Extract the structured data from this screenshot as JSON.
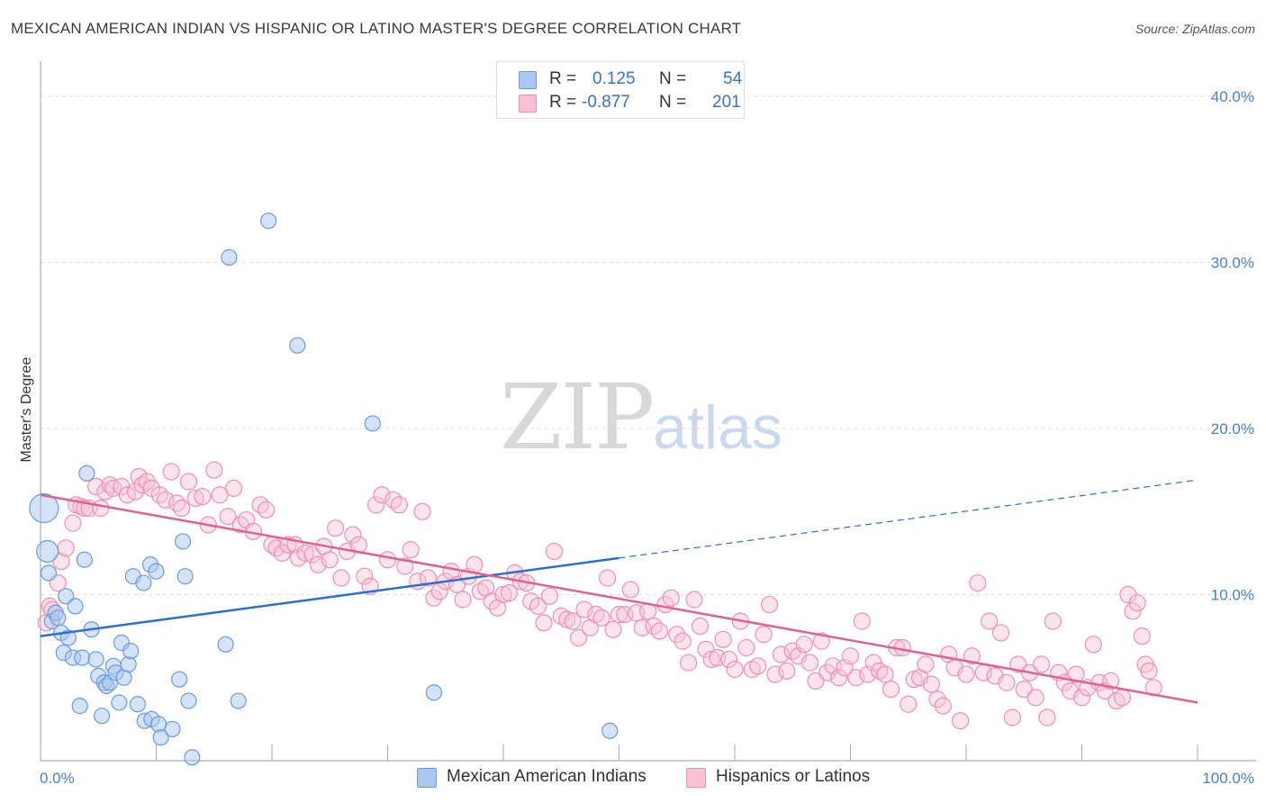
{
  "header": {
    "title": "MEXICAN AMERICAN INDIAN VS HISPANIC OR LATINO MASTER'S DEGREE CORRELATION CHART",
    "source": "Source: ZipAtlas.com"
  },
  "watermark": {
    "zip": "ZIP",
    "atlas": "atlas"
  },
  "legend": {
    "rows": [
      {
        "r_label": "R =",
        "r_value": "0.125",
        "n_label": "N =",
        "n_value": "54",
        "color": "#8fb4ea"
      },
      {
        "r_label": "R =",
        "r_value": "-0.877",
        "n_label": "N =",
        "n_value": "201",
        "color": "#f4a9c1"
      }
    ]
  },
  "bottom_legend": {
    "series1": "Mexican American Indians",
    "series2": "Hispanics or Latinos"
  },
  "colors": {
    "blue_fill": "#a9c7f0",
    "blue_stroke": "#6a9be0",
    "blue_line": "#2b6fd4",
    "pink_fill": "#f7c3d4",
    "pink_stroke": "#ee8fb0",
    "pink_line": "#e0628f",
    "grid": "#dddddd",
    "tick_text": "#4a7fd0"
  },
  "chart_data": {
    "type": "scatter",
    "title": "MEXICAN AMERICAN INDIAN VS HISPANIC OR LATINO MASTER'S DEGREE CORRELATION CHART",
    "xlabel": "",
    "ylabel": "Master's Degree",
    "xlim": [
      0,
      100
    ],
    "ylim": [
      0,
      42
    ],
    "x_tick_labels": [
      {
        "value": 0,
        "label": "0.0%"
      },
      {
        "value": 100,
        "label": "100.0%"
      }
    ],
    "y_tick_labels": [
      {
        "value": 10,
        "label": "10.0%"
      },
      {
        "value": 20,
        "label": "20.0%"
      },
      {
        "value": 30,
        "label": "30.0%"
      },
      {
        "value": 40,
        "label": "40.0%"
      }
    ],
    "series": [
      {
        "name": "Mexican American Indians",
        "r": 0.125,
        "n": 54,
        "trend": {
          "x0": 0,
          "y0": 7.5,
          "x1": 50,
          "y1": 12.2,
          "dashed_to_x": 100,
          "dashed_to_y": 16.9
        },
        "points": [
          [
            0.3,
            15.2
          ],
          [
            0.6,
            12.6
          ],
          [
            0.7,
            11.3
          ],
          [
            1.0,
            8.4
          ],
          [
            1.3,
            8.9
          ],
          [
            1.5,
            8.6
          ],
          [
            1.8,
            7.7
          ],
          [
            2.0,
            6.5
          ],
          [
            2.2,
            9.9
          ],
          [
            2.4,
            7.4
          ],
          [
            2.8,
            6.2
          ],
          [
            3.0,
            9.3
          ],
          [
            3.4,
            3.3
          ],
          [
            3.6,
            6.2
          ],
          [
            3.8,
            12.1
          ],
          [
            4.0,
            17.3
          ],
          [
            4.4,
            7.9
          ],
          [
            4.8,
            6.1
          ],
          [
            5.0,
            5.1
          ],
          [
            5.3,
            2.7
          ],
          [
            5.5,
            4.7
          ],
          [
            5.7,
            4.5
          ],
          [
            6.0,
            4.7
          ],
          [
            6.3,
            5.7
          ],
          [
            6.5,
            5.3
          ],
          [
            6.8,
            3.5
          ],
          [
            7.0,
            7.1
          ],
          [
            7.2,
            5.0
          ],
          [
            7.6,
            5.8
          ],
          [
            7.8,
            6.6
          ],
          [
            8.0,
            11.1
          ],
          [
            8.4,
            3.4
          ],
          [
            8.9,
            10.7
          ],
          [
            9.0,
            2.4
          ],
          [
            9.5,
            11.8
          ],
          [
            9.6,
            2.5
          ],
          [
            10.0,
            11.4
          ],
          [
            10.2,
            2.2
          ],
          [
            10.4,
            1.4
          ],
          [
            11.4,
            1.9
          ],
          [
            12.0,
            4.9
          ],
          [
            12.3,
            13.2
          ],
          [
            12.5,
            11.1
          ],
          [
            12.8,
            3.6
          ],
          [
            13.1,
            0.2
          ],
          [
            16.0,
            7.0
          ],
          [
            16.3,
            30.3
          ],
          [
            17.1,
            3.6
          ],
          [
            19.7,
            32.5
          ],
          [
            22.2,
            25.0
          ],
          [
            28.7,
            20.3
          ],
          [
            34.0,
            4.1
          ],
          [
            49.2,
            1.8
          ]
        ]
      },
      {
        "name": "Hispanics or Latinos",
        "r": -0.877,
        "n": 201,
        "trend": {
          "x0": 0,
          "y0": 16.0,
          "x1": 100,
          "y1": 3.5
        },
        "points": [
          [
            0.5,
            8.3
          ],
          [
            0.8,
            9.3
          ],
          [
            1.0,
            9.1
          ],
          [
            1.5,
            10.7
          ],
          [
            1.8,
            12.0
          ],
          [
            2.2,
            12.8
          ],
          [
            2.8,
            14.3
          ],
          [
            3.1,
            15.4
          ],
          [
            3.5,
            15.3
          ],
          [
            3.8,
            15.2
          ],
          [
            4.2,
            15.2
          ],
          [
            4.8,
            16.5
          ],
          [
            5.2,
            15.2
          ],
          [
            5.6,
            16.2
          ],
          [
            6.0,
            16.6
          ],
          [
            6.3,
            16.4
          ],
          [
            7.0,
            16.5
          ],
          [
            7.5,
            16.0
          ],
          [
            8.2,
            16.2
          ],
          [
            8.5,
            17.1
          ],
          [
            8.8,
            16.6
          ],
          [
            9.2,
            16.8
          ],
          [
            9.6,
            16.4
          ],
          [
            10.3,
            16.0
          ],
          [
            10.8,
            15.7
          ],
          [
            11.3,
            17.4
          ],
          [
            11.8,
            15.5
          ],
          [
            12.2,
            15.2
          ],
          [
            12.8,
            16.8
          ],
          [
            13.4,
            15.8
          ],
          [
            14.0,
            15.9
          ],
          [
            14.5,
            14.2
          ],
          [
            15.0,
            17.5
          ],
          [
            15.5,
            16.0
          ],
          [
            16.2,
            14.7
          ],
          [
            16.7,
            16.4
          ],
          [
            17.3,
            14.2
          ],
          [
            17.8,
            14.5
          ],
          [
            18.4,
            13.8
          ],
          [
            19.0,
            15.4
          ],
          [
            19.5,
            15.1
          ],
          [
            20.0,
            13.0
          ],
          [
            20.4,
            12.8
          ],
          [
            20.9,
            12.5
          ],
          [
            21.4,
            13.0
          ],
          [
            22.0,
            13.0
          ],
          [
            22.3,
            12.2
          ],
          [
            22.9,
            12.5
          ],
          [
            23.5,
            12.4
          ],
          [
            24.0,
            11.8
          ],
          [
            24.5,
            12.9
          ],
          [
            25.0,
            12.1
          ],
          [
            25.5,
            14.0
          ],
          [
            26.0,
            11.0
          ],
          [
            26.5,
            12.6
          ],
          [
            27.0,
            13.6
          ],
          [
            27.5,
            13.0
          ],
          [
            28.0,
            11.1
          ],
          [
            28.5,
            10.5
          ],
          [
            29.0,
            15.4
          ],
          [
            29.5,
            16.0
          ],
          [
            30.0,
            12.1
          ],
          [
            30.5,
            15.7
          ],
          [
            31.0,
            15.4
          ],
          [
            31.5,
            11.7
          ],
          [
            32.0,
            12.7
          ],
          [
            32.6,
            10.8
          ],
          [
            33.0,
            15.0
          ],
          [
            33.5,
            11.0
          ],
          [
            34.0,
            9.8
          ],
          [
            34.5,
            10.2
          ],
          [
            35.0,
            10.8
          ],
          [
            35.5,
            11.4
          ],
          [
            36.0,
            10.6
          ],
          [
            36.5,
            9.7
          ],
          [
            37.0,
            11.1
          ],
          [
            37.5,
            11.8
          ],
          [
            38.0,
            10.2
          ],
          [
            38.5,
            10.4
          ],
          [
            39.0,
            9.6
          ],
          [
            39.5,
            9.2
          ],
          [
            40.0,
            10.0
          ],
          [
            40.5,
            10.1
          ],
          [
            41.0,
            11.3
          ],
          [
            41.5,
            10.8
          ],
          [
            42.0,
            10.7
          ],
          [
            42.4,
            9.6
          ],
          [
            43.0,
            9.3
          ],
          [
            43.5,
            8.3
          ],
          [
            44.0,
            9.9
          ],
          [
            44.4,
            12.6
          ],
          [
            45.0,
            8.7
          ],
          [
            45.5,
            8.5
          ],
          [
            46.0,
            8.4
          ],
          [
            46.5,
            7.4
          ],
          [
            47.0,
            9.1
          ],
          [
            47.5,
            8.0
          ],
          [
            48.0,
            8.8
          ],
          [
            48.5,
            8.6
          ],
          [
            49.0,
            11.0
          ],
          [
            49.5,
            7.9
          ],
          [
            50.0,
            8.8
          ],
          [
            50.5,
            8.8
          ],
          [
            51.0,
            10.3
          ],
          [
            51.5,
            8.9
          ],
          [
            52.0,
            8.0
          ],
          [
            52.5,
            9.0
          ],
          [
            53.0,
            8.1
          ],
          [
            53.5,
            7.8
          ],
          [
            54.0,
            9.4
          ],
          [
            54.5,
            9.8
          ],
          [
            55.0,
            7.6
          ],
          [
            55.5,
            7.2
          ],
          [
            56.0,
            5.9
          ],
          [
            56.5,
            9.7
          ],
          [
            57.0,
            8.1
          ],
          [
            57.5,
            6.7
          ],
          [
            58.0,
            6.1
          ],
          [
            58.5,
            6.2
          ],
          [
            59.0,
            7.3
          ],
          [
            59.5,
            6.1
          ],
          [
            60.0,
            5.5
          ],
          [
            60.5,
            8.4
          ],
          [
            61.0,
            6.8
          ],
          [
            61.5,
            5.5
          ],
          [
            62.0,
            5.7
          ],
          [
            62.5,
            7.6
          ],
          [
            63.0,
            9.4
          ],
          [
            63.5,
            5.2
          ],
          [
            64.0,
            6.4
          ],
          [
            64.5,
            5.4
          ],
          [
            65.0,
            6.6
          ],
          [
            65.5,
            6.3
          ],
          [
            66.0,
            7.0
          ],
          [
            66.5,
            5.9
          ],
          [
            67.0,
            4.8
          ],
          [
            67.5,
            7.2
          ],
          [
            68.0,
            5.3
          ],
          [
            68.5,
            5.7
          ],
          [
            69.0,
            5.0
          ],
          [
            69.5,
            5.6
          ],
          [
            70.0,
            6.3
          ],
          [
            70.5,
            5.0
          ],
          [
            71.0,
            8.4
          ],
          [
            71.5,
            5.2
          ],
          [
            72.0,
            5.9
          ],
          [
            72.5,
            5.4
          ],
          [
            73.0,
            5.2
          ],
          [
            73.5,
            4.3
          ],
          [
            74.0,
            6.8
          ],
          [
            74.5,
            6.8
          ],
          [
            75.0,
            3.4
          ],
          [
            75.5,
            4.9
          ],
          [
            76.0,
            5.0
          ],
          [
            76.5,
            5.8
          ],
          [
            77.0,
            4.6
          ],
          [
            77.5,
            3.7
          ],
          [
            78.0,
            3.3
          ],
          [
            78.5,
            6.4
          ],
          [
            79.0,
            5.6
          ],
          [
            79.5,
            2.4
          ],
          [
            80.0,
            5.2
          ],
          [
            80.5,
            6.3
          ],
          [
            81.0,
            10.7
          ],
          [
            81.5,
            5.3
          ],
          [
            82.0,
            8.4
          ],
          [
            82.5,
            5.1
          ],
          [
            83.0,
            7.7
          ],
          [
            83.5,
            4.7
          ],
          [
            84.0,
            2.6
          ],
          [
            84.5,
            5.8
          ],
          [
            85.0,
            4.3
          ],
          [
            85.5,
            5.3
          ],
          [
            86.0,
            3.8
          ],
          [
            86.5,
            5.8
          ],
          [
            87.0,
            2.6
          ],
          [
            87.5,
            8.4
          ],
          [
            88.0,
            5.3
          ],
          [
            88.5,
            4.7
          ],
          [
            89.0,
            4.2
          ],
          [
            89.5,
            5.2
          ],
          [
            90.0,
            3.8
          ],
          [
            90.5,
            4.4
          ],
          [
            91.0,
            7.0
          ],
          [
            91.5,
            4.7
          ],
          [
            92.0,
            4.2
          ],
          [
            92.5,
            4.8
          ],
          [
            93.0,
            3.6
          ],
          [
            93.5,
            3.8
          ],
          [
            94.0,
            10.0
          ],
          [
            94.4,
            9.0
          ],
          [
            94.8,
            9.5
          ],
          [
            95.2,
            7.5
          ],
          [
            95.5,
            5.8
          ],
          [
            95.8,
            5.4
          ],
          [
            96.2,
            4.4
          ]
        ]
      }
    ]
  }
}
